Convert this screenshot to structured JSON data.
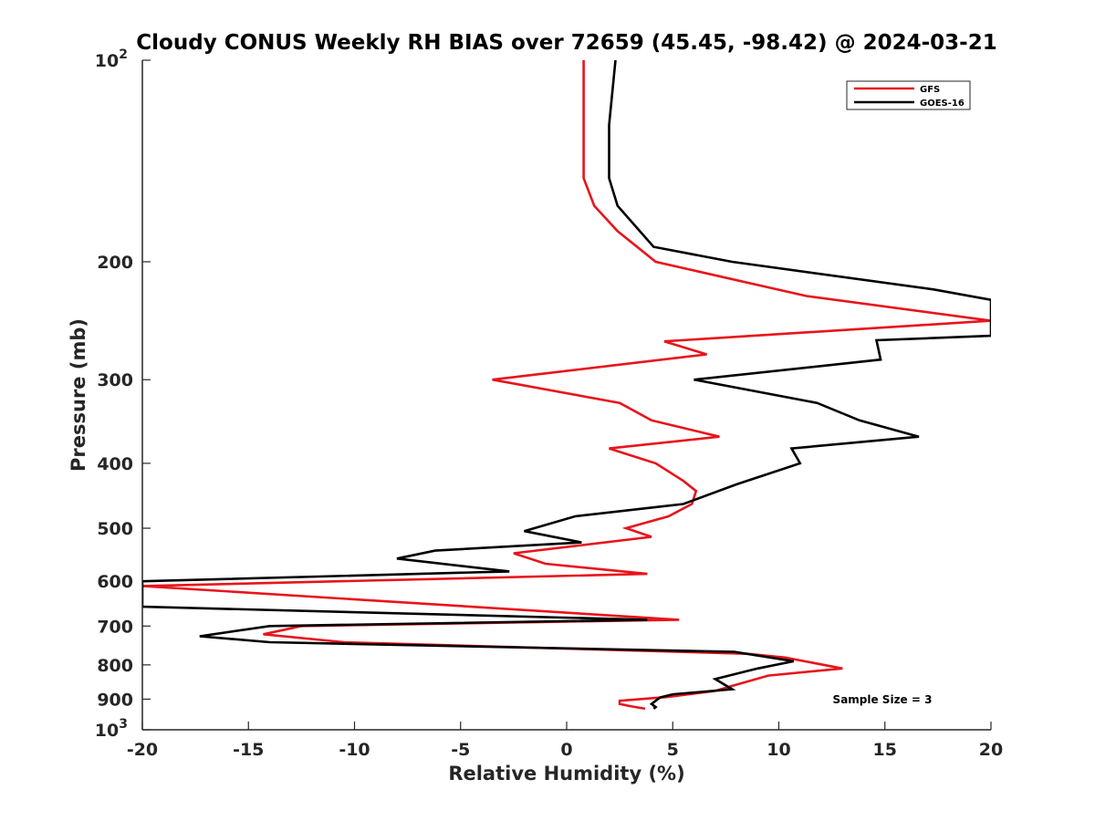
{
  "chart_data": {
    "type": "line",
    "title": "Cloudy CONUS Weekly RH BIAS over 72659 (45.45, -98.42) @ 2024-03-21",
    "xlabel": "Relative Humidity (%)",
    "ylabel": "Pressure (mb)",
    "xlim": [
      -20,
      20
    ],
    "ylim": [
      100,
      1000
    ],
    "y_scale": "log",
    "y_reversed": true,
    "x_ticks": [
      "-20",
      "-15",
      "-10",
      "-5",
      "0",
      "5",
      "10",
      "15",
      "20"
    ],
    "y_ticks": [
      {
        "value": 100,
        "label": "10",
        "sup": "2"
      },
      {
        "value": 200,
        "label": "200"
      },
      {
        "value": 300,
        "label": "300"
      },
      {
        "value": 400,
        "label": "400"
      },
      {
        "value": 500,
        "label": "500"
      },
      {
        "value": 600,
        "label": "600"
      },
      {
        "value": 700,
        "label": "700"
      },
      {
        "value": 800,
        "label": "800"
      },
      {
        "value": 900,
        "label": "900"
      },
      {
        "value": 1000,
        "label": "10",
        "sup": "3"
      }
    ],
    "legend_position": "top-right",
    "annotation": "Sample Size = 3",
    "series": [
      {
        "name": "GFS",
        "color": "#e8141b",
        "points": [
          [
            0.8,
            100
          ],
          [
            0.8,
            125
          ],
          [
            0.8,
            150
          ],
          [
            1.3,
            165
          ],
          [
            2.4,
            180
          ],
          [
            4.2,
            200
          ],
          [
            11.3,
            225
          ],
          [
            20.0,
            245
          ],
          [
            4.6,
            263
          ],
          [
            6.6,
            275
          ],
          [
            -3.5,
            300
          ],
          [
            2.5,
            325
          ],
          [
            4.0,
            345
          ],
          [
            7.2,
            365
          ],
          [
            2.0,
            380
          ],
          [
            4.2,
            400
          ],
          [
            5.5,
            425
          ],
          [
            6.1,
            440
          ],
          [
            5.9,
            460
          ],
          [
            4.8,
            480
          ],
          [
            2.8,
            500
          ],
          [
            4.0,
            515
          ],
          [
            -2.5,
            545
          ],
          [
            -1.0,
            565
          ],
          [
            3.8,
            585
          ],
          [
            -20.0,
            610
          ],
          [
            5.3,
            685
          ],
          [
            -12.5,
            700
          ],
          [
            -14.3,
            720
          ],
          [
            -10.5,
            740
          ],
          [
            8.5,
            770
          ],
          [
            10.3,
            780
          ],
          [
            13.0,
            810
          ],
          [
            9.5,
            830
          ],
          [
            7.8,
            860
          ],
          [
            7.0,
            875
          ],
          [
            4.8,
            893
          ],
          [
            2.5,
            905
          ],
          [
            2.5,
            915
          ],
          [
            3.0,
            922
          ],
          [
            3.7,
            930
          ]
        ]
      },
      {
        "name": "GOES-16",
        "color": "#000000",
        "points": [
          [
            2.3,
            100
          ],
          [
            2.0,
            125
          ],
          [
            2.0,
            150
          ],
          [
            2.4,
            165
          ],
          [
            4.1,
            190
          ],
          [
            7.8,
            200
          ],
          [
            17.3,
            220
          ],
          [
            20.0,
            228
          ],
          [
            20.0,
            258
          ],
          [
            14.6,
            262
          ],
          [
            14.8,
            280
          ],
          [
            6.0,
            300
          ],
          [
            11.8,
            325
          ],
          [
            13.8,
            345
          ],
          [
            16.6,
            365
          ],
          [
            10.6,
            380
          ],
          [
            11.0,
            400
          ],
          [
            8.0,
            430
          ],
          [
            5.5,
            460
          ],
          [
            4.2,
            465
          ],
          [
            0.4,
            480
          ],
          [
            -2.0,
            505
          ],
          [
            0.7,
            525
          ],
          [
            -6.2,
            540
          ],
          [
            -8.0,
            555
          ],
          [
            -2.7,
            580
          ],
          [
            -20.0,
            600
          ],
          [
            -20.0,
            655
          ],
          [
            3.8,
            685
          ],
          [
            -14.0,
            700
          ],
          [
            -17.3,
            725
          ],
          [
            -14.0,
            740
          ],
          [
            7.9,
            765
          ],
          [
            10.7,
            790
          ],
          [
            9.0,
            810
          ],
          [
            7.0,
            840
          ],
          [
            7.8,
            870
          ],
          [
            5.0,
            885
          ],
          [
            4.4,
            895
          ],
          [
            4.0,
            915
          ],
          [
            4.2,
            925
          ],
          [
            4.1,
            930
          ]
        ]
      }
    ]
  }
}
